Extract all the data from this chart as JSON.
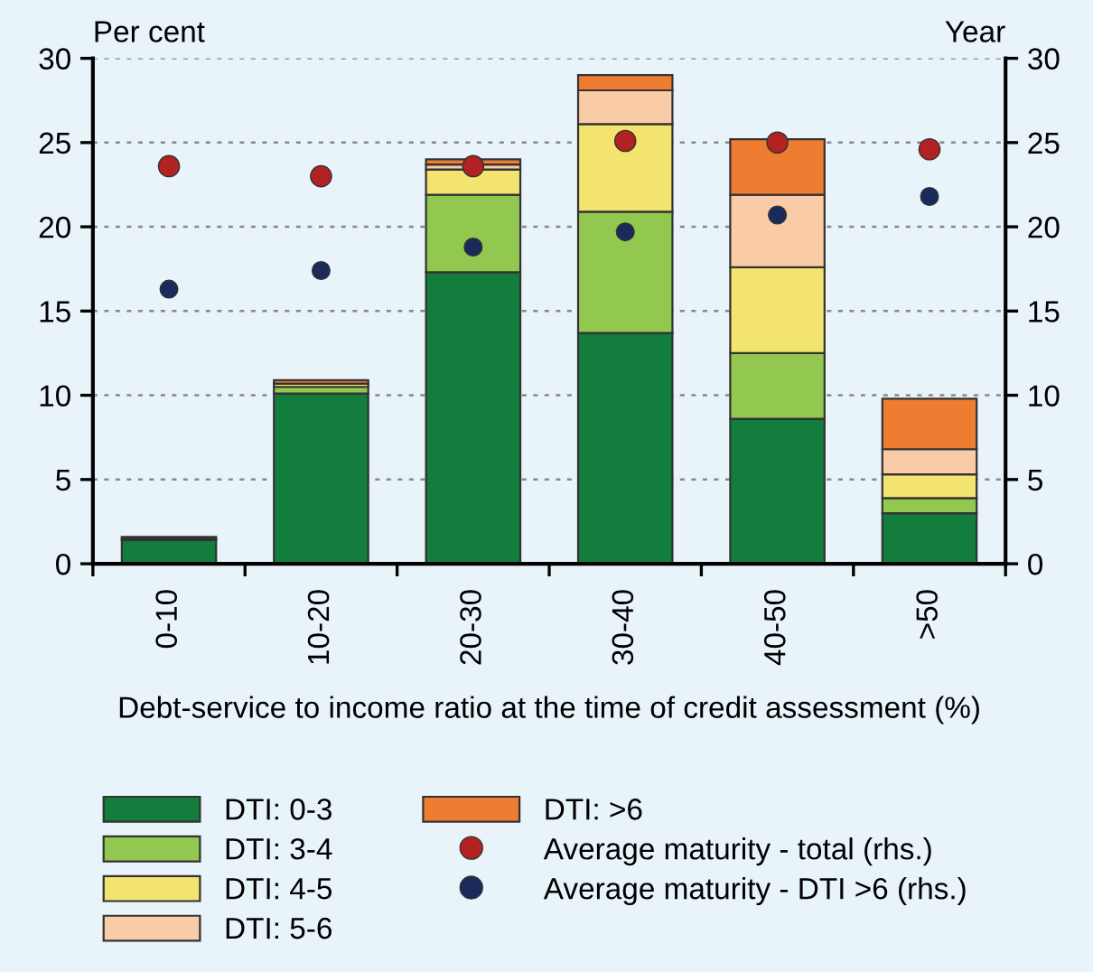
{
  "chart_data": {
    "type": "bar",
    "stacked": true,
    "xlabel": "Debt-service to income ratio at the time of credit assessment (%)",
    "ylabel": "Per cent",
    "y2label": "Year",
    "categories": [
      "0-10",
      "10-20",
      "20-30",
      "30-40",
      "40-50",
      ">50"
    ],
    "series": [
      {
        "name": "DTI: 0-3",
        "color": "#127d3c",
        "values": [
          1.4,
          10.1,
          17.3,
          13.7,
          8.6,
          3.0
        ]
      },
      {
        "name": "DTI: 3-4",
        "color": "#92c850",
        "values": [
          0.1,
          0.4,
          4.6,
          7.2,
          3.9,
          0.9
        ]
      },
      {
        "name": "DTI: 4-5",
        "color": "#f2e46e",
        "values": [
          0,
          0.2,
          1.5,
          5.2,
          5.1,
          1.4
        ]
      },
      {
        "name": "DTI: 5-6",
        "color": "#f9cba6",
        "values": [
          0,
          null,
          0.3,
          2.0,
          4.3,
          1.5
        ]
      },
      {
        "name": "DTI: >6",
        "color": "#ee7d31",
        "values": [
          0.1,
          0.2,
          0.3,
          0.9,
          3.3,
          3.0
        ]
      },
      {
        "name": "Average maturity - total (rhs.)",
        "type": "scatter",
        "axis": "y2",
        "color": "#b22222",
        "x": [
          "0-10",
          "10-20",
          "20-30",
          "30-40",
          "40-50",
          ">50"
        ],
        "values": [
          23.6,
          23.0,
          23.6,
          25.1,
          25.0,
          24.6
        ]
      },
      {
        "name": "Average maturity - DTI >6 (rhs.)",
        "type": "scatter",
        "axis": "y2",
        "color": "#1a2a5a",
        "x": [
          "0-10",
          "10-20",
          "20-30",
          "30-40",
          "40-50",
          ">50"
        ],
        "values": [
          16.3,
          17.4,
          18.8,
          19.7,
          20.7,
          21.8
        ]
      }
    ],
    "ylim": [
      0,
      30
    ],
    "yticks": [
      0,
      5,
      10,
      15,
      20,
      25,
      30
    ],
    "y2lim": [
      0,
      30
    ],
    "y2ticks": [
      0,
      5,
      10,
      15,
      20,
      25,
      30
    ],
    "grid": "y",
    "legend": "bottom",
    "marker": "circle"
  }
}
